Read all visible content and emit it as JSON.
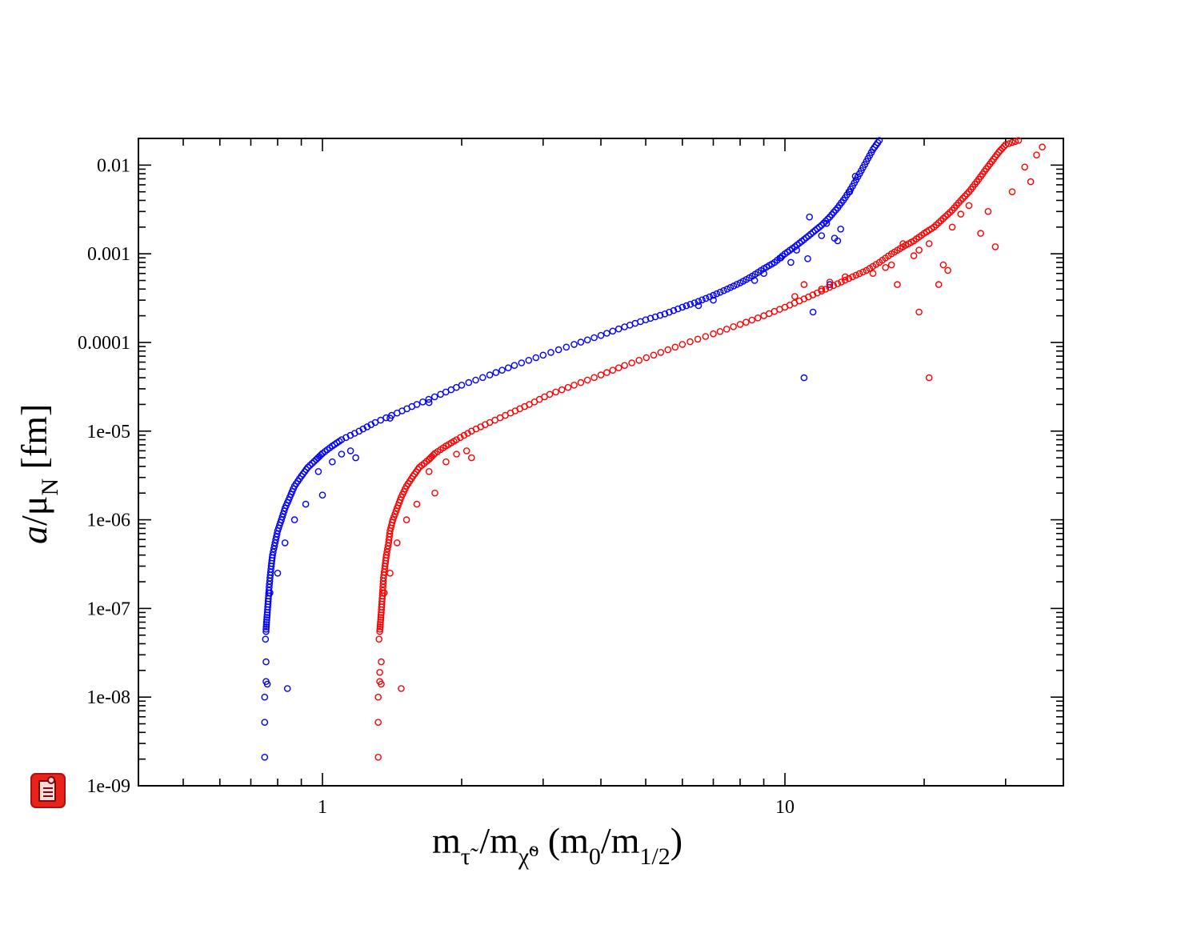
{
  "chart_data": {
    "type": "scatter",
    "title": "",
    "xlabel": {
      "m": "m",
      "tau_sub": "τ̃",
      "slash1": " /m",
      "chi_sub": "χ̃⁰",
      "paren_open": "   (m",
      "zero_sub": "0",
      "slash2": "/m",
      "half_sub": "1/2",
      "paren_close": ")"
    },
    "ylabel": {
      "a": "a",
      "slash_mu": "/μ",
      "n_sub": "N",
      "unit": " [fm]"
    },
    "x_scale": "log",
    "y_scale": "log",
    "xlim": [
      0.4,
      40
    ],
    "ylim": [
      1e-09,
      0.02
    ],
    "x_ticks": [
      {
        "value": 1,
        "label": "1"
      },
      {
        "value": 10,
        "label": "10"
      }
    ],
    "y_ticks": [
      {
        "value": 1e-09,
        "label": "1e-09"
      },
      {
        "value": 1e-08,
        "label": "1e-08"
      },
      {
        "value": 1e-07,
        "label": "1e-07"
      },
      {
        "value": 1e-06,
        "label": "1e-06"
      },
      {
        "value": 1e-05,
        "label": "1e-05"
      },
      {
        "value": 0.0001,
        "label": "0.0001"
      },
      {
        "value": 0.001,
        "label": "0.001"
      },
      {
        "value": 0.01,
        "label": "0.01"
      }
    ],
    "legend": null,
    "series": [
      {
        "name": "blue",
        "color": "#0000ff",
        "marker": "open-circle",
        "points": [
          [
            0.75,
            2.1e-09
          ],
          [
            0.75,
            5.2e-09
          ],
          [
            0.75,
            1e-08
          ],
          [
            0.755,
            1.5e-08
          ],
          [
            0.755,
            2.5e-08
          ],
          [
            0.76,
            1.4e-08
          ],
          [
            0.84,
            1.25e-08
          ],
          [
            0.753,
            4.5e-08
          ],
          [
            0.755,
            5.5e-08
          ],
          [
            0.757,
            7e-08
          ],
          [
            0.76,
            9e-08
          ],
          [
            0.763,
            1.2e-07
          ],
          [
            0.766,
            1.6e-07
          ],
          [
            0.77,
            2.2e-07
          ],
          [
            0.775,
            3e-07
          ],
          [
            0.78,
            4e-07
          ],
          [
            0.79,
            5.5e-07
          ],
          [
            0.8,
            7.5e-07
          ],
          [
            0.815,
            1e-06
          ],
          [
            0.83,
            1.35e-06
          ],
          [
            0.85,
            1.8e-06
          ],
          [
            0.87,
            2.4e-06
          ],
          [
            0.9,
            3.1e-06
          ],
          [
            0.93,
            3.9e-06
          ],
          [
            0.97,
            4.8e-06
          ],
          [
            1.0,
            5.6e-06
          ],
          [
            1.05,
            6.8e-06
          ],
          [
            1.1,
            8e-06
          ],
          [
            1.2,
            1e-05
          ],
          [
            1.3,
            1.25e-05
          ],
          [
            1.45,
            1.6e-05
          ],
          [
            1.6,
            2e-05
          ],
          [
            1.8,
            2.6e-05
          ],
          [
            2.0,
            3.3e-05
          ],
          [
            2.3,
            4.3e-05
          ],
          [
            2.6,
            5.5e-05
          ],
          [
            3.0,
            7.2e-05
          ],
          [
            3.5,
            9.5e-05
          ],
          [
            4.0,
            0.00012
          ],
          [
            4.5,
            0.00015
          ],
          [
            5.0,
            0.00018
          ],
          [
            5.5,
            0.00021
          ],
          [
            6.0,
            0.00025
          ],
          [
            6.5,
            0.00029
          ],
          [
            7.0,
            0.00034
          ],
          [
            7.5,
            0.0004
          ],
          [
            8.0,
            0.00047
          ],
          [
            8.5,
            0.00056
          ],
          [
            9.0,
            0.00068
          ],
          [
            9.5,
            0.0008
          ],
          [
            10.0,
            0.001
          ],
          [
            10.5,
            0.0012
          ],
          [
            11.0,
            0.00145
          ],
          [
            11.5,
            0.00175
          ],
          [
            12.0,
            0.0021
          ],
          [
            12.5,
            0.0026
          ],
          [
            13.0,
            0.0033
          ],
          [
            13.5,
            0.0043
          ],
          [
            14.0,
            0.0058
          ],
          [
            14.5,
            0.008
          ],
          [
            15.0,
            0.011
          ],
          [
            15.5,
            0.015
          ],
          [
            16.0,
            0.019
          ],
          [
            0.77,
            1.5e-07
          ],
          [
            0.8,
            2.5e-07
          ],
          [
            0.83,
            5.5e-07
          ],
          [
            0.87,
            1e-06
          ],
          [
            0.92,
            1.5e-06
          ],
          [
            0.98,
            3.5e-06
          ],
          [
            1.0,
            1.9e-06
          ],
          [
            1.05,
            4.5e-06
          ],
          [
            1.1,
            5.5e-06
          ],
          [
            1.15,
            6e-06
          ],
          [
            1.18,
            5e-06
          ],
          [
            1.4,
            1.4e-05
          ],
          [
            1.7,
            2.1e-05
          ],
          [
            9.8,
            0.0009
          ],
          [
            10.6,
            0.0011
          ],
          [
            11.2,
            0.00088
          ],
          [
            12.0,
            0.0016
          ],
          [
            12.3,
            0.0022
          ],
          [
            12.8,
            0.0015
          ],
          [
            13.2,
            0.0019
          ],
          [
            11.3,
            0.0026
          ],
          [
            12.5,
            0.00045
          ],
          [
            11.5,
            0.00022
          ],
          [
            11.0,
            4e-05
          ],
          [
            13.0,
            0.0014
          ],
          [
            13.8,
            0.005
          ],
          [
            14.2,
            0.0075
          ],
          [
            6.5,
            0.00026
          ],
          [
            7.0,
            0.0003
          ],
          [
            8.6,
            0.0005
          ],
          [
            9.0,
            0.0006
          ],
          [
            10.3,
            0.0008
          ]
        ]
      },
      {
        "name": "red",
        "color": "#ff0000",
        "marker": "open-circle",
        "points": [
          [
            1.32,
            2.1e-09
          ],
          [
            1.32,
            5.2e-09
          ],
          [
            1.32,
            1e-08
          ],
          [
            1.33,
            1.5e-08
          ],
          [
            1.33,
            1.9e-08
          ],
          [
            1.34,
            2.5e-08
          ],
          [
            1.34,
            1.4e-08
          ],
          [
            1.48,
            1.25e-08
          ],
          [
            1.325,
            4.5e-08
          ],
          [
            1.33,
            5.5e-08
          ],
          [
            1.335,
            7e-08
          ],
          [
            1.34,
            9e-08
          ],
          [
            1.345,
            1.2e-07
          ],
          [
            1.35,
            1.6e-07
          ],
          [
            1.355,
            2.2e-07
          ],
          [
            1.365,
            3e-07
          ],
          [
            1.375,
            4e-07
          ],
          [
            1.39,
            5.5e-07
          ],
          [
            1.4,
            7.5e-07
          ],
          [
            1.42,
            1e-06
          ],
          [
            1.45,
            1.35e-06
          ],
          [
            1.48,
            1.8e-06
          ],
          [
            1.52,
            2.4e-06
          ],
          [
            1.57,
            3.1e-06
          ],
          [
            1.62,
            3.9e-06
          ],
          [
            1.7,
            4.8e-06
          ],
          [
            1.75,
            5.6e-06
          ],
          [
            1.85,
            6.8e-06
          ],
          [
            1.95,
            8e-06
          ],
          [
            2.1,
            1e-05
          ],
          [
            2.3,
            1.25e-05
          ],
          [
            2.55,
            1.6e-05
          ],
          [
            2.8,
            2e-05
          ],
          [
            3.1,
            2.6e-05
          ],
          [
            3.5,
            3.3e-05
          ],
          [
            4.0,
            4.3e-05
          ],
          [
            4.5,
            5.5e-05
          ],
          [
            5.2,
            7.2e-05
          ],
          [
            6.0,
            9.5e-05
          ],
          [
            7.0,
            0.000125
          ],
          [
            8.0,
            0.00016
          ],
          [
            9.0,
            0.0002
          ],
          [
            10.0,
            0.00025
          ],
          [
            11.0,
            0.00031
          ],
          [
            12.0,
            0.00038
          ],
          [
            13.0,
            0.00046
          ],
          [
            14.0,
            0.00055
          ],
          [
            15.0,
            0.00065
          ],
          [
            16.0,
            0.0008
          ],
          [
            17.0,
            0.001
          ],
          [
            18.0,
            0.0012
          ],
          [
            19.0,
            0.0014
          ],
          [
            20.0,
            0.0017
          ],
          [
            21.0,
            0.002
          ],
          [
            22.0,
            0.0025
          ],
          [
            23.0,
            0.0031
          ],
          [
            24.0,
            0.004
          ],
          [
            25.0,
            0.005
          ],
          [
            26.0,
            0.0065
          ],
          [
            27.0,
            0.0085
          ],
          [
            28.0,
            0.011
          ],
          [
            29.0,
            0.014
          ],
          [
            30.0,
            0.017
          ],
          [
            32.0,
            0.019
          ],
          [
            36.0,
            0.016
          ],
          [
            1.36,
            1.5e-07
          ],
          [
            1.4,
            2.5e-07
          ],
          [
            1.45,
            5.5e-07
          ],
          [
            1.52,
            1e-06
          ],
          [
            1.6,
            1.5e-06
          ],
          [
            1.7,
            3.5e-06
          ],
          [
            1.75,
            2e-06
          ],
          [
            1.85,
            4.5e-06
          ],
          [
            1.95,
            5.5e-06
          ],
          [
            2.05,
            6e-06
          ],
          [
            2.1,
            5e-06
          ],
          [
            10.5,
            0.00033
          ],
          [
            11.0,
            0.00045
          ],
          [
            12.0,
            0.0004
          ],
          [
            12.5,
            0.00048
          ],
          [
            13.5,
            0.00055
          ],
          [
            15.5,
            0.0006
          ],
          [
            16.5,
            0.0007
          ],
          [
            17.0,
            0.00075
          ],
          [
            18.0,
            0.0013
          ],
          [
            19.0,
            0.00095
          ],
          [
            19.5,
            0.0011
          ],
          [
            20.5,
            0.0013
          ],
          [
            21.5,
            0.00045
          ],
          [
            22.0,
            0.00075
          ],
          [
            22.5,
            0.00065
          ],
          [
            23.0,
            0.002
          ],
          [
            24.0,
            0.0028
          ],
          [
            25.0,
            0.0035
          ],
          [
            26.5,
            0.0017
          ],
          [
            27.5,
            0.003
          ],
          [
            28.5,
            0.0012
          ],
          [
            31.0,
            0.005
          ],
          [
            33.0,
            0.0095
          ],
          [
            34.0,
            0.0065
          ],
          [
            35.0,
            0.013
          ],
          [
            19.5,
            0.00022
          ],
          [
            20.5,
            4e-05
          ],
          [
            17.5,
            0.00045
          ]
        ]
      }
    ]
  }
}
